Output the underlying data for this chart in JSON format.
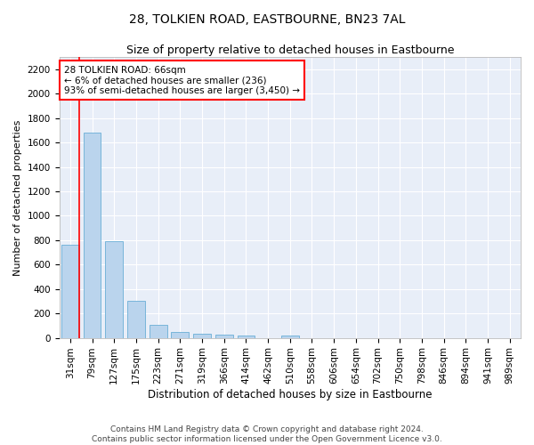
{
  "title": "28, TOLKIEN ROAD, EASTBOURNE, BN23 7AL",
  "subtitle": "Size of property relative to detached houses in Eastbourne",
  "xlabel": "Distribution of detached houses by size in Eastbourne",
  "ylabel": "Number of detached properties",
  "categories": [
    "31sqm",
    "79sqm",
    "127sqm",
    "175sqm",
    "223sqm",
    "271sqm",
    "319sqm",
    "366sqm",
    "414sqm",
    "462sqm",
    "510sqm",
    "558sqm",
    "606sqm",
    "654sqm",
    "702sqm",
    "750sqm",
    "798sqm",
    "846sqm",
    "894sqm",
    "941sqm",
    "989sqm"
  ],
  "values": [
    760,
    1680,
    795,
    300,
    110,
    45,
    33,
    27,
    22,
    0,
    22,
    0,
    0,
    0,
    0,
    0,
    0,
    0,
    0,
    0,
    0
  ],
  "bar_color": "#bad4ed",
  "bar_edge_color": "#6aaed6",
  "annotation_box_text": "28 TOLKIEN ROAD: 66sqm\n← 6% of detached houses are smaller (236)\n93% of semi-detached houses are larger (3,450) →",
  "annotation_box_color": "white",
  "annotation_box_edge_color": "red",
  "red_line_color": "red",
  "ylim": [
    0,
    2300
  ],
  "yticks": [
    0,
    200,
    400,
    600,
    800,
    1000,
    1200,
    1400,
    1600,
    1800,
    2000,
    2200
  ],
  "bg_color": "#e8eef8",
  "grid_color": "white",
  "footer": "Contains HM Land Registry data © Crown copyright and database right 2024.\nContains public sector information licensed under the Open Government Licence v3.0.",
  "title_fontsize": 10,
  "subtitle_fontsize": 9,
  "xlabel_fontsize": 8.5,
  "ylabel_fontsize": 8,
  "tick_fontsize": 7.5,
  "footer_fontsize": 6.5,
  "annot_fontsize": 7.5
}
